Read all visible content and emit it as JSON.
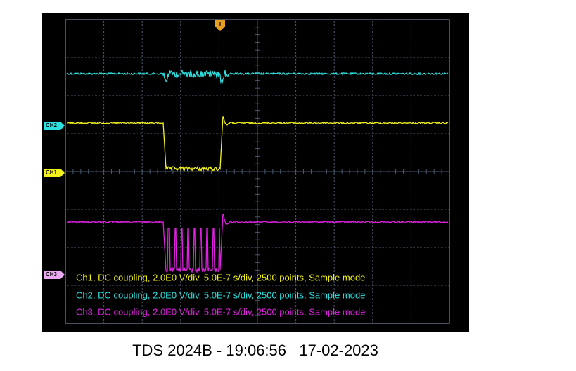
{
  "trigger_marker": "T",
  "channel_markers": [
    "CH2",
    "CH1",
    "CH3"
  ],
  "info_lines": [
    "Ch1, DC coupling, 2.0E0 V/div, 5.0E-7 s/div, 2500 points, Sample mode",
    "Ch2, DC coupling, 2.0E0 V/div, 5.0E-7 s/div, 2500 points, Sample mode",
    "Ch3, DC coupling, 2.0E0 V/div, 5.0E-7 s/div, 2500 points, Sample mode"
  ],
  "caption": "TDS 2024B - 19:06:56   17-02-2023"
}
